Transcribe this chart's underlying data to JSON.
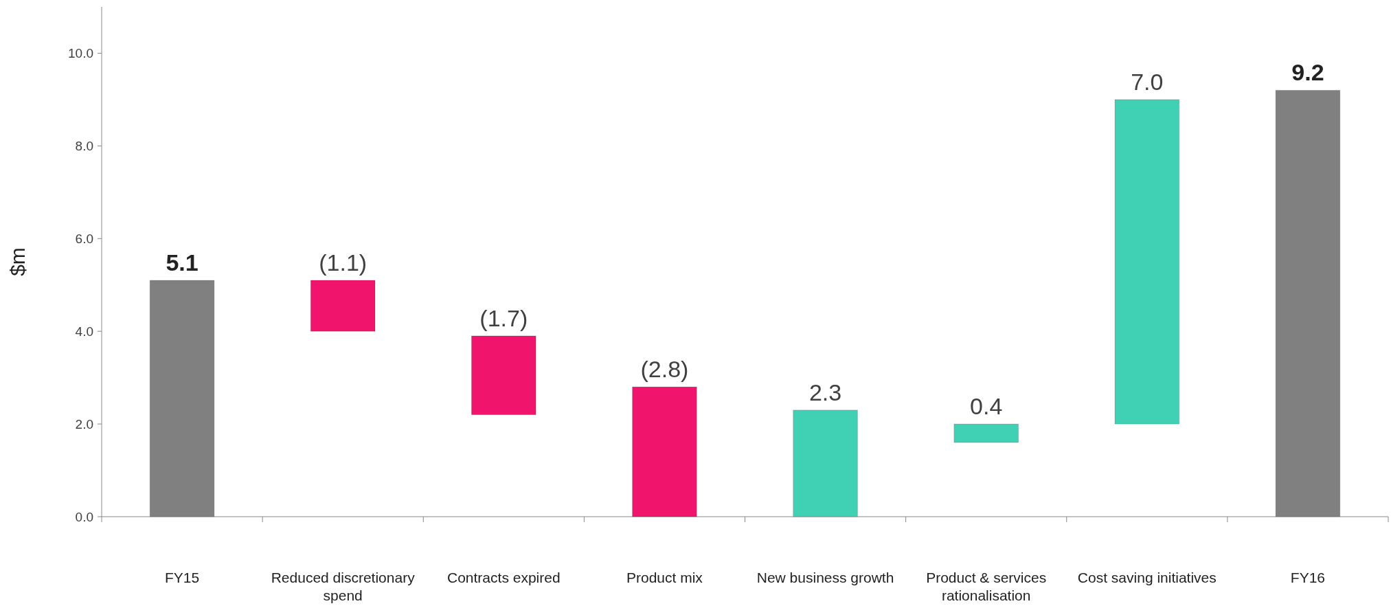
{
  "chart_data": {
    "type": "bar",
    "ylabel": "$m",
    "categories": [
      "FY15",
      "Reduced discretionary spend",
      "Contracts expired",
      "Product mix",
      "New business growth",
      "Product & services rationalisation",
      "Cost saving initiatives",
      "FY16"
    ],
    "values": [
      5.1,
      -1.1,
      -1.7,
      -2.8,
      2.3,
      0.4,
      7.0,
      9.2
    ],
    "base": [
      0,
      5.1,
      3.9,
      2.8,
      0,
      1.6,
      2.0,
      0
    ],
    "colors": [
      "#808080",
      "#f0146c",
      "#f0146c",
      "#f0146c",
      "#40d0b4",
      "#40d0b4",
      "#40d0b4",
      "#808080"
    ],
    "value_labels": [
      "5.1",
      "(1.1)",
      "(1.7)",
      "(2.8)",
      "2.3",
      "0.4",
      "7.0",
      "9.2"
    ],
    "ylim": [
      0,
      11
    ],
    "yticks": [
      {
        "value": 0,
        "label": "0.0"
      },
      {
        "value": 2,
        "label": "2.0"
      },
      {
        "value": 4,
        "label": "4.0"
      },
      {
        "value": 6,
        "label": "6.0"
      },
      {
        "value": 8,
        "label": "8.0"
      },
      {
        "value": 10,
        "label": "10.0"
      }
    ],
    "grid": false
  }
}
